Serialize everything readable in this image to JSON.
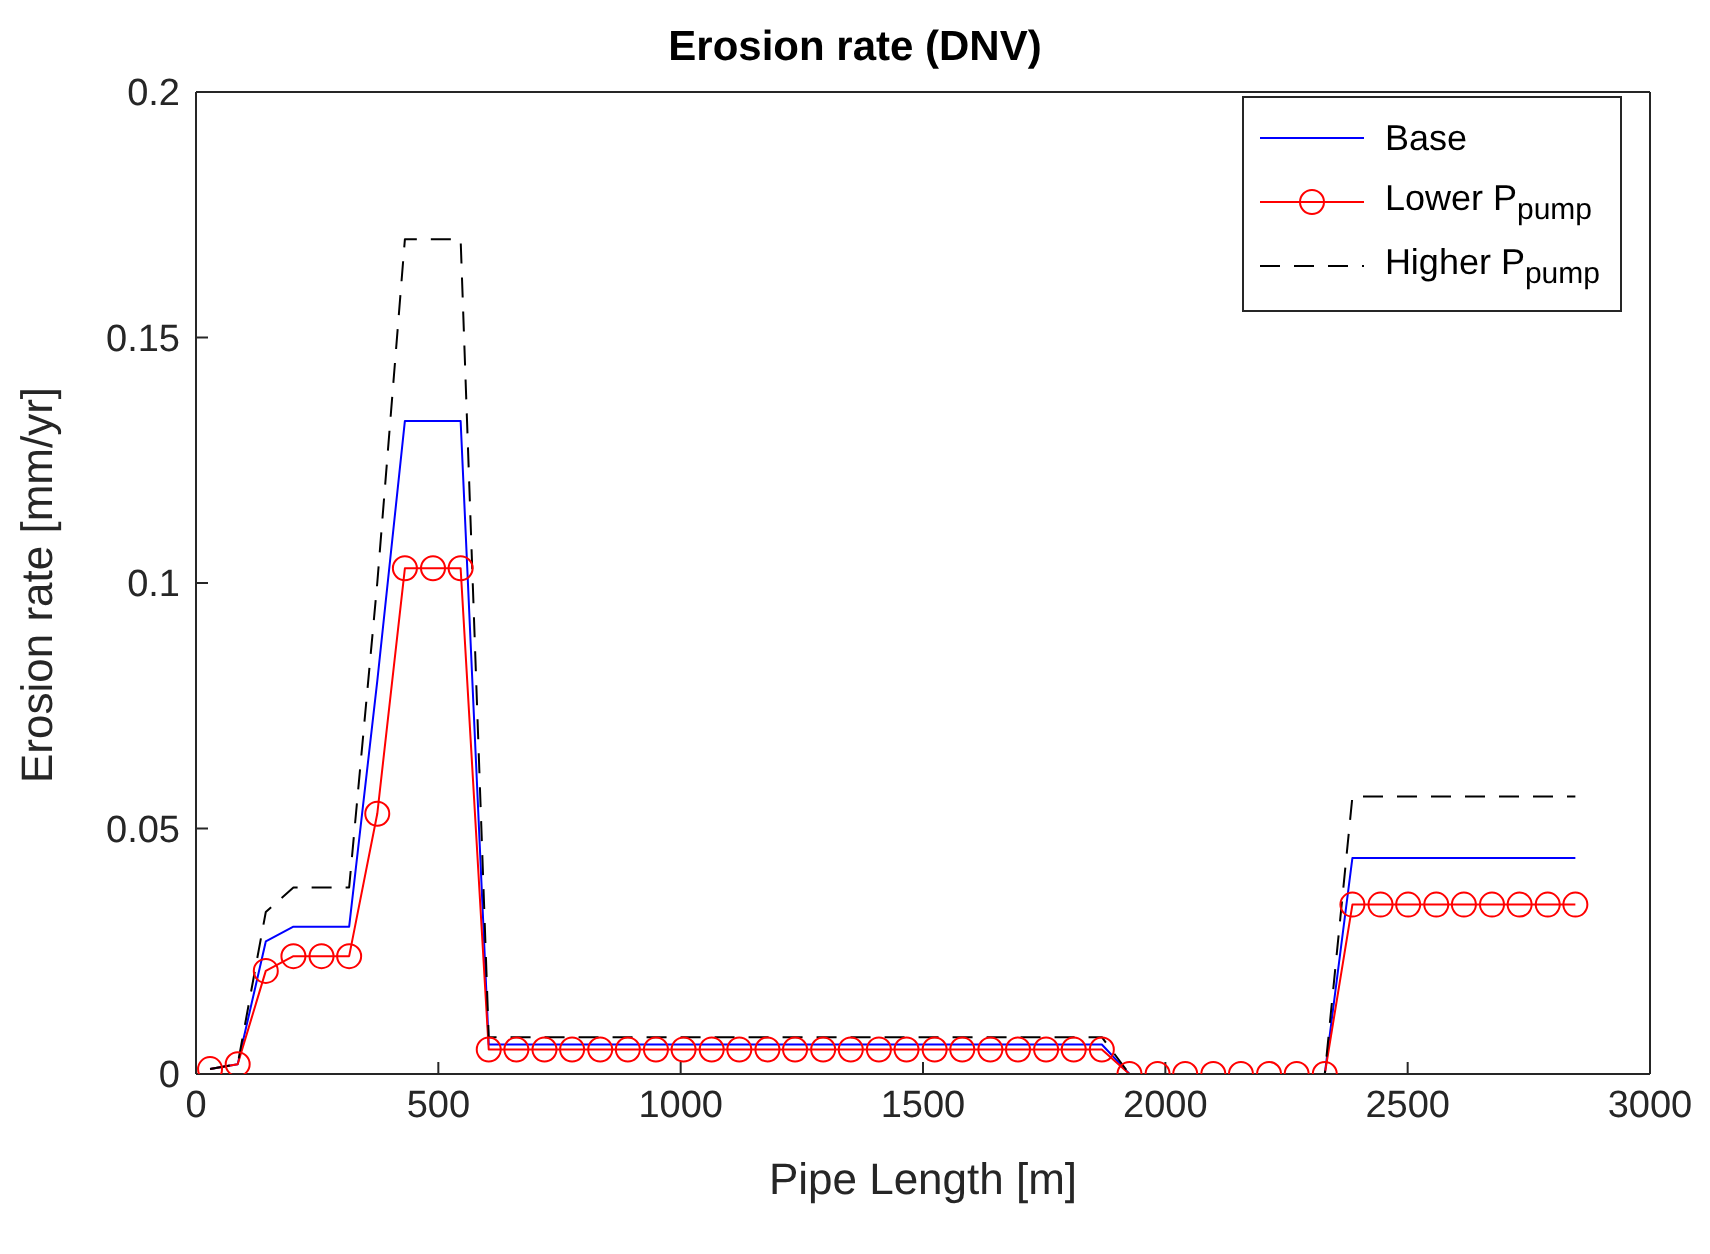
{
  "chart_data": {
    "type": "line",
    "title": "Erosion rate (DNV)",
    "xlabel": "Pipe Length [m]",
    "ylabel": "Erosion rate [mm/yr]",
    "x": [
      29,
      86,
      144,
      201,
      259,
      316,
      374,
      431,
      489,
      546,
      604,
      661,
      719,
      776,
      834,
      891,
      949,
      1006,
      1064,
      1121,
      1179,
      1236,
      1294,
      1351,
      1409,
      1466,
      1524,
      1581,
      1639,
      1696,
      1754,
      1811,
      1869,
      1926,
      1984,
      2041,
      2099,
      2156,
      2214,
      2271,
      2329,
      2386,
      2444,
      2501,
      2559,
      2616,
      2674,
      2731,
      2789,
      2846
    ],
    "series": [
      {
        "name": "Base",
        "color": "#0000ff",
        "marker": "none",
        "line_style": "solid",
        "values": [
          0.001,
          0.002,
          0.027,
          0.03,
          0.03,
          0.03,
          0.08,
          0.133,
          0.133,
          0.133,
          0.006,
          0.006,
          0.006,
          0.006,
          0.006,
          0.006,
          0.006,
          0.006,
          0.006,
          0.006,
          0.006,
          0.006,
          0.006,
          0.006,
          0.006,
          0.006,
          0.006,
          0.006,
          0.006,
          0.006,
          0.006,
          0.006,
          0.006,
          0,
          0,
          0,
          0,
          0,
          0,
          0,
          0,
          0.044,
          0.044,
          0.044,
          0.044,
          0.044,
          0.044,
          0.044,
          0.044,
          0.044
        ]
      },
      {
        "name": "Lower P$_{pump}$",
        "color": "#ff0000",
        "marker": "circle",
        "line_style": "solid",
        "values": [
          0.001,
          0.002,
          0.021,
          0.024,
          0.024,
          0.024,
          0.053,
          0.103,
          0.103,
          0.103,
          0.005,
          0.005,
          0.005,
          0.005,
          0.005,
          0.005,
          0.005,
          0.005,
          0.005,
          0.005,
          0.005,
          0.005,
          0.005,
          0.005,
          0.005,
          0.005,
          0.005,
          0.005,
          0.005,
          0.005,
          0.005,
          0.005,
          0.005,
          0,
          0,
          0,
          0,
          0,
          0,
          0,
          0,
          0.0345,
          0.0345,
          0.0345,
          0.0345,
          0.0345,
          0.0345,
          0.0345,
          0.0345,
          0.0345
        ]
      },
      {
        "name": "Higher P$_{pump}$",
        "color": "#000000",
        "marker": "none",
        "line_style": "dashed",
        "values": [
          0.001,
          0.002,
          0.033,
          0.038,
          0.038,
          0.038,
          0.1,
          0.17,
          0.17,
          0.17,
          0.0075,
          0.0075,
          0.0075,
          0.0075,
          0.0075,
          0.0075,
          0.0075,
          0.0075,
          0.0075,
          0.0075,
          0.0075,
          0.0075,
          0.0075,
          0.0075,
          0.0075,
          0.0075,
          0.0075,
          0.0075,
          0.0075,
          0.0075,
          0.0075,
          0.0075,
          0.0075,
          0,
          0,
          0,
          0,
          0,
          0,
          0,
          0,
          0.0565,
          0.0565,
          0.0565,
          0.0565,
          0.0565,
          0.0565,
          0.0565,
          0.0565,
          0.0565
        ]
      }
    ],
    "xlim": [
      0,
      3000
    ],
    "xticks": [
      0,
      500,
      1000,
      1500,
      2000,
      2500,
      3000
    ],
    "ylim": [
      0,
      0.2
    ],
    "yticks": [
      0,
      0.05,
      0.1,
      0.15,
      0.2
    ],
    "grid": false,
    "legend": "top right"
  }
}
